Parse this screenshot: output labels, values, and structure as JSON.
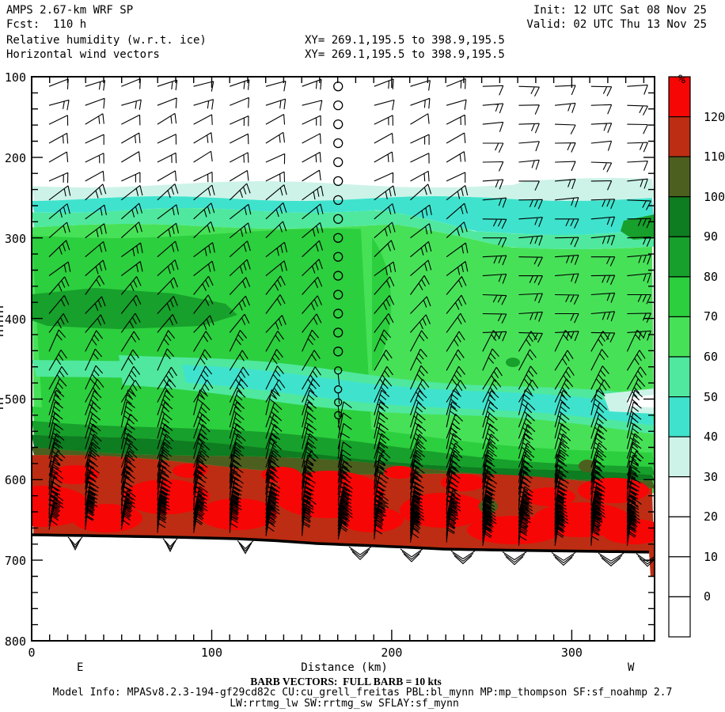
{
  "header": {
    "model": "AMPS 2.67-km WRF SP",
    "fcst": "Fcst:  110 h",
    "field1": "Relative humidity (w.r.t. ice)",
    "field2": "Horizontal wind vectors",
    "init": "Init: 12 UTC Sat 08 Nov 25",
    "valid": "Valid: 02 UTC Thu 13 Nov 25",
    "xy_line1": "XY= 269.1,195.5 to 398.9,195.5",
    "xy_line2": "XY= 269.1,195.5 to 398.9,195.5"
  },
  "footer": {
    "barb_legend": "BARB VECTORS:  FULL BARB = 10 kts",
    "model_info_line1": "Model Info: MPASv8.2.3-194-gf29cd82c CU:cu_grell_freitas PBL:bl_mynn MP:mp_thompson SF:sf_noahmp 2.7",
    "model_info_line2": "LW:rrtmg_lw SW:rrtmg_sw SFLAY:sf_mynn"
  },
  "chart_data": {
    "type": "heatmap",
    "title": "Relative humidity (w.r.t. ice) vertical cross-section with horizontal wind vectors",
    "xlabel": "Distance (km)",
    "x_ticks": [
      0,
      100,
      200,
      300
    ],
    "x_minor_step_km": 10,
    "x_range_km": [
      0,
      346
    ],
    "x_end_labels": {
      "east": "E",
      "west": "W"
    },
    "y_axis": {
      "units": "hPa (pressure, unlabeled on plot)",
      "ticks": [
        100,
        200,
        300,
        400,
        500,
        600,
        700,
        800
      ],
      "minor_step": 20,
      "range": [
        100,
        800
      ],
      "inverted": true
    },
    "colorbar": {
      "title": "%",
      "boundary_labels_top_to_bottom": [
        "120",
        "110",
        "100",
        "90",
        "80",
        "70",
        "60",
        "50",
        "40",
        "30",
        "20",
        "10",
        "0"
      ],
      "segment_colors_top_to_bottom": [
        "#f70606",
        "#bd2d13",
        "#4c5f1e",
        "#0e7c20",
        "#17a02b",
        "#2ccf3e",
        "#47e158",
        "#4fe89e",
        "#3fe3cd",
        "#cdf3e8",
        "#ffffff",
        "#ffffff",
        "#ffffff",
        "#ffffff"
      ]
    },
    "humidity_structure": [
      {
        "rh_pct": "0-30",
        "pressure_hPa": "100-235",
        "extent": "full width upper levels",
        "color": "#ffffff"
      },
      {
        "rh_pct": "30-40",
        "pressure_hPa": "235-250",
        "extent": "full width wavy strip",
        "color": "#cdf3e8"
      },
      {
        "rh_pct": "40-50",
        "pressure_hPa": "250-265 east half, 250-295 west half",
        "extent": "full width",
        "color": "#3fe3cd"
      },
      {
        "rh_pct": "50-60",
        "pressure_hPa": "265-287",
        "extent": "full width",
        "color": "#4fe89e"
      },
      {
        "rh_pct": "60-70",
        "pressure_hPa": "287-575",
        "extent": "dominant over west (right) half",
        "color": "#47e158"
      },
      {
        "rh_pct": "70-80",
        "pressure_hPa": "290-525",
        "extent": "dominant over east (left) half and strip above transition",
        "color": "#2ccf3e"
      },
      {
        "rh_pct": "80-90",
        "pressure_hPa": "365-410",
        "extent": "patch 0-115 km; small patch at west edge near 290 hPa",
        "color": "#17a02b"
      },
      {
        "rh_pct": "40-50 dry slot",
        "pressure_hPa": "460-520",
        "extent": "wavy band from ~60 km to west edge with 20-30% white pocket at far west",
        "color": "#3fe3cd"
      },
      {
        "rh_pct": "80-110 transition",
        "pressure_hPa": "sloping from ~525 hPa east to ~600 hPa west",
        "extent": "full width thin bands",
        "color": "#17a02b / #0e7c20 / #4c5f1e"
      },
      {
        "rh_pct": "110-120",
        "pressure_hPa": "~570 down to terrain",
        "extent": "full width near-surface layer",
        "color": "#bd2d13"
      },
      {
        "rh_pct": ">120",
        "pressure_hPa": "590-665",
        "extent": "many patches inside near-surface layer",
        "color": "#f70606"
      }
    ],
    "terrain_surface_hPa": {
      "east_end": 668,
      "west_end": 690
    },
    "wind": {
      "full_barb_kts": 10,
      "calm_column_km": 173,
      "notes": "barbs every ~20 km and ~20-25 hPa; calm circles 100-450 hPa near 173 km; dense strong-wind barbs in lowest 100 hPa above terrain"
    }
  },
  "colors": {
    "background": "#ffffff",
    "frame": "#000000",
    "text": "#000000",
    "terrain": "#000000"
  }
}
